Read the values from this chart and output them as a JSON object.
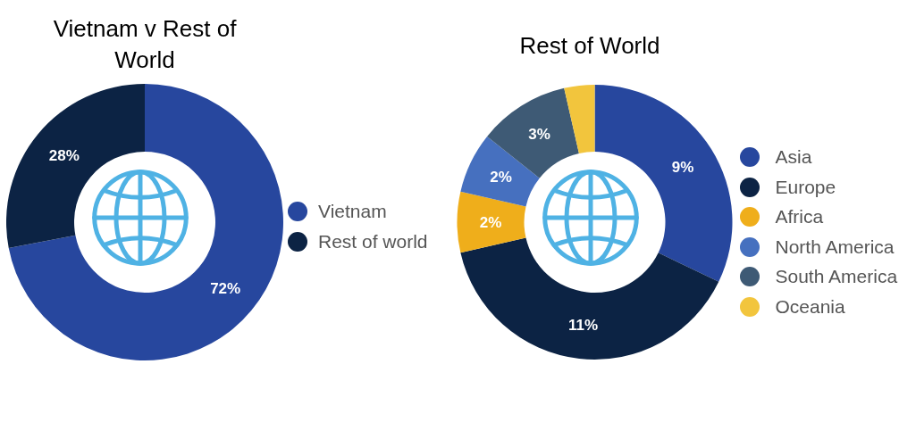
{
  "chart_data": [
    {
      "type": "donut",
      "title": "Vietnam v Rest of World",
      "categories": [
        "Vietnam",
        "Rest of world"
      ],
      "values": [
        72,
        28
      ],
      "colors": [
        "#27479e",
        "#0c2344"
      ],
      "value_labels": [
        "72%",
        "28%"
      ],
      "legend": "right"
    },
    {
      "type": "donut",
      "title": "Rest of World",
      "categories": [
        "Asia",
        "Europe",
        "Africa",
        "North America",
        "South America",
        "Oceania"
      ],
      "values": [
        9,
        11,
        2,
        2,
        3,
        1
      ],
      "colors": [
        "#27479e",
        "#0c2344",
        "#efae1b",
        "#4670bf",
        "#3e5a75",
        "#f2c53d"
      ],
      "value_labels": [
        "9%",
        "11%",
        "2%",
        "2%",
        "3%",
        null
      ],
      "legend": "right"
    }
  ]
}
